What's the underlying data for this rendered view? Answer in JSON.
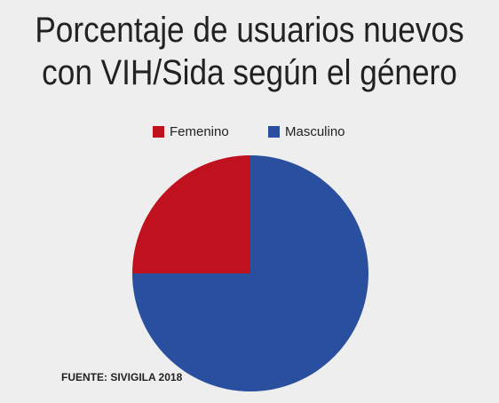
{
  "title_lines": [
    "Porcentaje de usuarios nuevos",
    "con VIH/Sida según el género"
  ],
  "source": "FUENTE: SIVIGILA 2018",
  "chart_data": {
    "type": "pie",
    "title": "Porcentaje de usuarios nuevos con VIH/Sida según el género",
    "categories": [
      "Femenino",
      "Masculino"
    ],
    "values": [
      25,
      75
    ],
    "colors": [
      "#c0111f",
      "#2a4f9e"
    ],
    "legend": "top"
  }
}
